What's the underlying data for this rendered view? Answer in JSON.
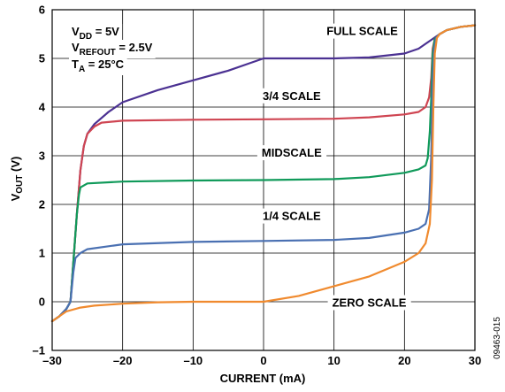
{
  "chart_data": {
    "type": "line",
    "xlabel": "CURRENT (mA)",
    "ylabel": {
      "main": "V",
      "sub": "OUT",
      "tail": " (V)"
    },
    "xlim": [
      -30,
      30
    ],
    "ylim": [
      -1,
      6
    ],
    "x_ticks": [
      -30,
      -20,
      -10,
      0,
      10,
      20,
      30
    ],
    "y_ticks": [
      -1,
      0,
      1,
      2,
      3,
      4,
      5,
      6
    ],
    "x_tick_labels": [
      "–30",
      "–20",
      "–10",
      "0",
      "10",
      "20",
      "30"
    ],
    "y_tick_labels": [
      "–1",
      "0",
      "1",
      "2",
      "3",
      "4",
      "5",
      "6"
    ],
    "grid": true,
    "conditions": [
      {
        "main": "V",
        "sub": "DD",
        "tail": " = 5V"
      },
      {
        "main": "V",
        "sub": "REFOUT",
        "tail": " = 2.5V"
      },
      {
        "main": "T",
        "sub": "A",
        "tail": " = 25°C"
      }
    ],
    "figure_id": "09463-015",
    "series": [
      {
        "name": "FULL SCALE",
        "color": "#4b3192",
        "points": [
          [
            -30,
            -0.4
          ],
          [
            -29,
            -0.3
          ],
          [
            -28,
            -0.15
          ],
          [
            -27.4,
            0
          ],
          [
            -27,
            0.8
          ],
          [
            -26.5,
            1.8
          ],
          [
            -26,
            2.7
          ],
          [
            -25.5,
            3.2
          ],
          [
            -25,
            3.45
          ],
          [
            -24,
            3.65
          ],
          [
            -22,
            3.9
          ],
          [
            -20,
            4.1
          ],
          [
            -15,
            4.35
          ],
          [
            -10,
            4.55
          ],
          [
            -5,
            4.75
          ],
          [
            -2,
            4.9
          ],
          [
            0,
            5.0
          ],
          [
            5,
            5.0
          ],
          [
            10,
            5.0
          ],
          [
            15,
            5.02
          ],
          [
            20,
            5.1
          ],
          [
            22,
            5.2
          ],
          [
            23,
            5.3
          ],
          [
            24,
            5.4
          ],
          [
            25,
            5.5
          ],
          [
            26,
            5.58
          ],
          [
            28,
            5.65
          ],
          [
            30,
            5.68
          ]
        ]
      },
      {
        "name": "3/4 SCALE",
        "color": "#cf4552",
        "points": [
          [
            -30,
            -0.4
          ],
          [
            -29,
            -0.3
          ],
          [
            -28,
            -0.15
          ],
          [
            -27.4,
            0
          ],
          [
            -27,
            0.8
          ],
          [
            -26.5,
            1.8
          ],
          [
            -26,
            2.7
          ],
          [
            -25.5,
            3.2
          ],
          [
            -25,
            3.45
          ],
          [
            -24,
            3.6
          ],
          [
            -23,
            3.68
          ],
          [
            -20,
            3.72
          ],
          [
            -10,
            3.74
          ],
          [
            0,
            3.75
          ],
          [
            10,
            3.76
          ],
          [
            15,
            3.79
          ],
          [
            20,
            3.85
          ],
          [
            22,
            3.9
          ],
          [
            23,
            4.0
          ],
          [
            23.5,
            4.2
          ],
          [
            23.8,
            4.6
          ],
          [
            24,
            5.2
          ],
          [
            24.3,
            5.4
          ],
          [
            25,
            5.5
          ],
          [
            26,
            5.58
          ],
          [
            28,
            5.65
          ],
          [
            30,
            5.68
          ]
        ]
      },
      {
        "name": "MIDSCALE",
        "color": "#109a5a",
        "points": [
          [
            -30,
            -0.4
          ],
          [
            -29,
            -0.3
          ],
          [
            -28,
            -0.15
          ],
          [
            -27.4,
            0
          ],
          [
            -27,
            0.8
          ],
          [
            -26.5,
            1.8
          ],
          [
            -26.2,
            2.2
          ],
          [
            -26,
            2.35
          ],
          [
            -25,
            2.43
          ],
          [
            -20,
            2.47
          ],
          [
            -10,
            2.49
          ],
          [
            0,
            2.5
          ],
          [
            10,
            2.52
          ],
          [
            15,
            2.56
          ],
          [
            20,
            2.65
          ],
          [
            22,
            2.72
          ],
          [
            23,
            2.8
          ],
          [
            23.3,
            2.95
          ],
          [
            23.6,
            3.5
          ],
          [
            23.8,
            4.2
          ],
          [
            24,
            5.1
          ],
          [
            24.3,
            5.4
          ],
          [
            25,
            5.5
          ],
          [
            26,
            5.58
          ],
          [
            28,
            5.65
          ],
          [
            30,
            5.68
          ]
        ]
      },
      {
        "name": "1/4 SCALE",
        "color": "#4a70b2",
        "points": [
          [
            -30,
            -0.4
          ],
          [
            -29,
            -0.3
          ],
          [
            -28,
            -0.15
          ],
          [
            -27.4,
            0
          ],
          [
            -27,
            0.6
          ],
          [
            -26.7,
            0.9
          ],
          [
            -26,
            1.0
          ],
          [
            -25,
            1.08
          ],
          [
            -20,
            1.18
          ],
          [
            -10,
            1.23
          ],
          [
            0,
            1.25
          ],
          [
            10,
            1.27
          ],
          [
            15,
            1.31
          ],
          [
            20,
            1.42
          ],
          [
            22,
            1.5
          ],
          [
            23,
            1.6
          ],
          [
            23.5,
            1.9
          ],
          [
            23.8,
            3.0
          ],
          [
            24,
            4.5
          ],
          [
            24.2,
            5.2
          ],
          [
            24.5,
            5.42
          ],
          [
            25,
            5.5
          ],
          [
            26,
            5.58
          ],
          [
            28,
            5.65
          ],
          [
            30,
            5.68
          ]
        ]
      },
      {
        "name": "ZERO SCALE",
        "color": "#f08a2e",
        "points": [
          [
            -30,
            -0.4
          ],
          [
            -29,
            -0.3
          ],
          [
            -28,
            -0.2
          ],
          [
            -26,
            -0.12
          ],
          [
            -24,
            -0.08
          ],
          [
            -20,
            -0.04
          ],
          [
            -15,
            -0.01
          ],
          [
            -10,
            0
          ],
          [
            0,
            0
          ],
          [
            5,
            0.12
          ],
          [
            10,
            0.32
          ],
          [
            15,
            0.52
          ],
          [
            20,
            0.82
          ],
          [
            22,
            1.0
          ],
          [
            23,
            1.2
          ],
          [
            23.6,
            1.6
          ],
          [
            23.9,
            2.5
          ],
          [
            24.1,
            4.0
          ],
          [
            24.3,
            5.1
          ],
          [
            24.6,
            5.42
          ],
          [
            25,
            5.5
          ],
          [
            26,
            5.58
          ],
          [
            28,
            5.65
          ],
          [
            30,
            5.68
          ]
        ]
      }
    ],
    "series_labels": [
      {
        "text": "FULL SCALE",
        "x": 14,
        "y": 5.48
      },
      {
        "text": "3/4 SCALE",
        "x": 4,
        "y": 4.15
      },
      {
        "text": "MIDSCALE",
        "x": 4,
        "y": 2.98
      },
      {
        "text": "1/4 SCALE",
        "x": 4,
        "y": 1.68
      },
      {
        "text": "ZERO SCALE",
        "x": 15,
        "y": -0.1
      }
    ]
  }
}
